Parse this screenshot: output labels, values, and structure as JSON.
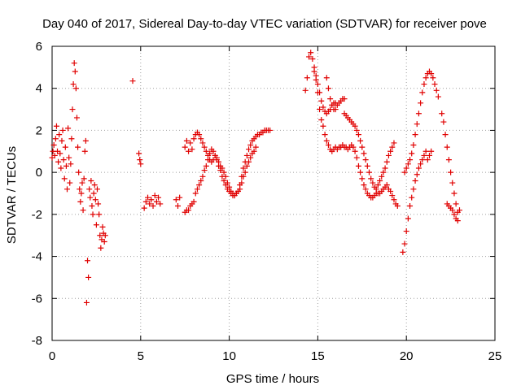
{
  "chart_data": {
    "type": "scatter",
    "title": "Day 040 of 2017, Sidereal Day-to-day VTEC variation (SDTVAR) for receiver pove",
    "xlabel": "GPS time / hours",
    "ylabel": "SDTVAR / TECUs",
    "xlim": [
      0,
      25
    ],
    "ylim": [
      -8,
      6
    ],
    "x_ticks": [
      0,
      5,
      10,
      15,
      20,
      25
    ],
    "y_ticks": [
      -8,
      -6,
      -4,
      -2,
      0,
      2,
      4,
      6
    ],
    "x_tick_labels": [
      "0",
      "5",
      "10",
      "15",
      "20",
      "25"
    ],
    "y_tick_labels": [
      "-8",
      "-6",
      "-4",
      "-2",
      "0",
      "2",
      "4",
      "6"
    ],
    "grid": true,
    "legend": "none",
    "marker": "+",
    "color": "#e00000",
    "points": [
      [
        0.0,
        0.7
      ],
      [
        0.05,
        1.0
      ],
      [
        0.1,
        1.3
      ],
      [
        0.15,
        0.8
      ],
      [
        0.2,
        1.6
      ],
      [
        0.25,
        2.2
      ],
      [
        0.3,
        1.0
      ],
      [
        0.35,
        0.5
      ],
      [
        0.4,
        1.8
      ],
      [
        0.45,
        0.9
      ],
      [
        0.5,
        0.2
      ],
      [
        0.55,
        1.5
      ],
      [
        0.6,
        2.0
      ],
      [
        0.65,
        0.6
      ],
      [
        0.7,
        -0.3
      ],
      [
        0.75,
        1.2
      ],
      [
        0.8,
        0.3
      ],
      [
        0.85,
        -0.8
      ],
      [
        0.9,
        2.1
      ],
      [
        0.95,
        0.7
      ],
      [
        1.0,
        -0.5
      ],
      [
        1.05,
        0.4
      ],
      [
        1.1,
        1.6
      ],
      [
        1.15,
        3.0
      ],
      [
        1.2,
        4.2
      ],
      [
        1.25,
        5.2
      ],
      [
        1.3,
        4.8
      ],
      [
        1.35,
        4.0
      ],
      [
        1.4,
        2.6
      ],
      [
        1.45,
        1.2
      ],
      [
        1.5,
        0.0
      ],
      [
        1.55,
        -0.8
      ],
      [
        1.6,
        -1.4
      ],
      [
        1.65,
        -1.0
      ],
      [
        1.7,
        -0.5
      ],
      [
        1.75,
        -1.8
      ],
      [
        1.8,
        -0.3
      ],
      [
        1.85,
        1.0
      ],
      [
        1.9,
        1.5
      ],
      [
        1.95,
        -6.2
      ],
      [
        2.0,
        -4.2
      ],
      [
        2.05,
        -5.0
      ],
      [
        2.1,
        -0.8
      ],
      [
        2.15,
        -1.2
      ],
      [
        2.2,
        -0.4
      ],
      [
        2.25,
        -1.6
      ],
      [
        2.3,
        -2.0
      ],
      [
        2.35,
        -1.0
      ],
      [
        2.4,
        -0.6
      ],
      [
        2.45,
        -1.3
      ],
      [
        2.5,
        -2.5
      ],
      [
        2.55,
        -0.8
      ],
      [
        2.6,
        -1.5
      ],
      [
        2.65,
        -2.0
      ],
      [
        2.7,
        -3.0
      ],
      [
        2.75,
        -3.6
      ],
      [
        2.8,
        -3.2
      ],
      [
        2.85,
        -2.6
      ],
      [
        2.9,
        -2.9
      ],
      [
        2.95,
        -3.3
      ],
      [
        3.0,
        -3.0
      ],
      [
        4.55,
        4.35
      ],
      [
        4.9,
        0.9
      ],
      [
        4.95,
        0.6
      ],
      [
        5.0,
        0.4
      ],
      [
        5.2,
        -1.7
      ],
      [
        5.3,
        -1.4
      ],
      [
        5.4,
        -1.2
      ],
      [
        5.5,
        -1.5
      ],
      [
        5.6,
        -1.3
      ],
      [
        5.7,
        -1.6
      ],
      [
        5.8,
        -1.1
      ],
      [
        5.9,
        -1.4
      ],
      [
        6.0,
        -1.2
      ],
      [
        6.1,
        -1.5
      ],
      [
        7.0,
        -1.3
      ],
      [
        7.1,
        -1.6
      ],
      [
        7.2,
        -1.2
      ],
      [
        7.5,
        1.2
      ],
      [
        7.6,
        1.5
      ],
      [
        7.7,
        1.0
      ],
      [
        7.8,
        1.4
      ],
      [
        7.9,
        1.1
      ],
      [
        8.0,
        1.6
      ],
      [
        8.1,
        1.8
      ],
      [
        8.2,
        1.9
      ],
      [
        8.3,
        1.8
      ],
      [
        8.4,
        1.6
      ],
      [
        8.5,
        1.4
      ],
      [
        8.6,
        1.2
      ],
      [
        8.7,
        1.0
      ],
      [
        8.8,
        0.8
      ],
      [
        8.9,
        0.6
      ],
      [
        9.0,
        0.5
      ],
      [
        9.1,
        0.6
      ],
      [
        9.2,
        0.8
      ],
      [
        9.3,
        0.7
      ],
      [
        9.4,
        0.5
      ],
      [
        9.5,
        0.3
      ],
      [
        9.6,
        0.2
      ],
      [
        9.7,
        0.0
      ],
      [
        9.8,
        -0.2
      ],
      [
        9.9,
        -0.5
      ],
      [
        10.0,
        -0.7
      ],
      [
        10.1,
        -0.9
      ],
      [
        10.2,
        -1.0
      ],
      [
        10.3,
        -1.1
      ],
      [
        10.4,
        -1.0
      ],
      [
        10.5,
        -0.9
      ],
      [
        10.6,
        -0.6
      ],
      [
        10.7,
        -0.2
      ],
      [
        10.8,
        0.2
      ],
      [
        10.9,
        0.5
      ],
      [
        11.0,
        0.8
      ],
      [
        11.1,
        1.1
      ],
      [
        11.2,
        1.3
      ],
      [
        11.3,
        1.5
      ],
      [
        11.4,
        1.6
      ],
      [
        11.5,
        1.7
      ],
      [
        11.6,
        1.8
      ],
      [
        11.7,
        1.8
      ],
      [
        11.8,
        1.9
      ],
      [
        11.9,
        1.9
      ],
      [
        12.0,
        2.0
      ],
      [
        12.1,
        2.0
      ],
      [
        12.2,
        2.0
      ],
      [
        12.3,
        2.0
      ],
      [
        7.5,
        -1.9
      ],
      [
        7.6,
        -1.8
      ],
      [
        7.7,
        -1.8
      ],
      [
        7.8,
        -1.6
      ],
      [
        7.9,
        -1.5
      ],
      [
        8.0,
        -1.4
      ],
      [
        8.1,
        -1.0
      ],
      [
        8.2,
        -0.8
      ],
      [
        8.3,
        -0.6
      ],
      [
        8.4,
        -0.4
      ],
      [
        8.5,
        -0.2
      ],
      [
        8.6,
        0.1
      ],
      [
        8.7,
        0.3
      ],
      [
        8.8,
        0.6
      ],
      [
        8.9,
        0.9
      ],
      [
        9.0,
        1.1
      ],
      [
        9.1,
        1.0
      ],
      [
        9.2,
        0.8
      ],
      [
        9.3,
        0.6
      ],
      [
        9.4,
        0.3
      ],
      [
        9.5,
        0.1
      ],
      [
        9.6,
        -0.2
      ],
      [
        9.7,
        -0.4
      ],
      [
        9.8,
        -0.6
      ],
      [
        9.9,
        -0.8
      ],
      [
        10.0,
        -0.9
      ],
      [
        10.1,
        -1.0
      ],
      [
        10.2,
        -1.1
      ],
      [
        10.3,
        -1.1
      ],
      [
        10.4,
        -1.0
      ],
      [
        10.5,
        -0.9
      ],
      [
        10.6,
        -0.8
      ],
      [
        10.7,
        -0.5
      ],
      [
        10.8,
        -0.2
      ],
      [
        10.9,
        0.0
      ],
      [
        11.0,
        0.3
      ],
      [
        11.1,
        0.5
      ],
      [
        11.2,
        0.7
      ],
      [
        11.3,
        0.9
      ],
      [
        11.4,
        1.0
      ],
      [
        11.5,
        1.2
      ],
      [
        14.3,
        3.9
      ],
      [
        14.4,
        4.5
      ],
      [
        14.5,
        5.5
      ],
      [
        14.6,
        5.7
      ],
      [
        14.7,
        5.4
      ],
      [
        14.8,
        5.0
      ],
      [
        14.9,
        4.6
      ],
      [
        15.0,
        4.2
      ],
      [
        15.1,
        3.8
      ],
      [
        15.2,
        3.4
      ],
      [
        15.3,
        3.1
      ],
      [
        15.4,
        2.9
      ],
      [
        15.5,
        2.8
      ],
      [
        15.6,
        2.9
      ],
      [
        15.7,
        3.0
      ],
      [
        15.8,
        3.2
      ],
      [
        15.9,
        3.3
      ],
      [
        16.0,
        3.3
      ],
      [
        16.1,
        3.2
      ],
      [
        16.2,
        3.3
      ],
      [
        16.3,
        3.4
      ],
      [
        16.4,
        3.5
      ],
      [
        16.5,
        3.5
      ],
      [
        14.8,
        4.8
      ],
      [
        14.9,
        4.4
      ],
      [
        15.0,
        3.8
      ],
      [
        15.1,
        3.0
      ],
      [
        15.2,
        2.5
      ],
      [
        15.3,
        2.2
      ],
      [
        15.4,
        1.8
      ],
      [
        15.5,
        1.5
      ],
      [
        15.6,
        1.3
      ],
      [
        15.7,
        1.1
      ],
      [
        15.8,
        1.0
      ],
      [
        15.9,
        1.1
      ],
      [
        16.0,
        1.2
      ],
      [
        16.1,
        1.1
      ],
      [
        16.2,
        1.2
      ],
      [
        16.3,
        1.2
      ],
      [
        16.4,
        1.3
      ],
      [
        16.5,
        1.2
      ],
      [
        16.6,
        1.2
      ],
      [
        16.7,
        1.1
      ],
      [
        16.8,
        1.2
      ],
      [
        16.9,
        1.3
      ],
      [
        17.0,
        1.2
      ],
      [
        17.1,
        1.0
      ],
      [
        17.2,
        0.7
      ],
      [
        17.3,
        0.3
      ],
      [
        17.4,
        0.0
      ],
      [
        17.5,
        -0.3
      ],
      [
        17.6,
        -0.6
      ],
      [
        17.7,
        -0.8
      ],
      [
        17.8,
        -1.0
      ],
      [
        17.9,
        -1.1
      ],
      [
        18.0,
        -1.2
      ],
      [
        18.1,
        -1.2
      ],
      [
        18.2,
        -1.1
      ],
      [
        18.3,
        -1.0
      ],
      [
        18.4,
        -1.0
      ],
      [
        18.5,
        -1.0
      ],
      [
        18.6,
        -0.9
      ],
      [
        18.7,
        -0.8
      ],
      [
        18.8,
        -0.7
      ],
      [
        18.9,
        -0.6
      ],
      [
        19.0,
        -0.8
      ],
      [
        19.1,
        -0.9
      ],
      [
        19.2,
        -1.1
      ],
      [
        19.3,
        -1.3
      ],
      [
        19.4,
        -1.5
      ],
      [
        19.5,
        -1.6
      ],
      [
        16.5,
        2.8
      ],
      [
        16.6,
        2.7
      ],
      [
        16.7,
        2.6
      ],
      [
        16.8,
        2.5
      ],
      [
        16.9,
        2.4
      ],
      [
        17.0,
        2.3
      ],
      [
        17.1,
        2.2
      ],
      [
        17.2,
        2.0
      ],
      [
        17.3,
        1.8
      ],
      [
        17.4,
        1.5
      ],
      [
        17.5,
        1.2
      ],
      [
        17.6,
        0.9
      ],
      [
        17.7,
        0.6
      ],
      [
        17.8,
        0.3
      ],
      [
        17.9,
        0.0
      ],
      [
        18.0,
        -0.3
      ],
      [
        18.1,
        -0.5
      ],
      [
        18.2,
        -0.7
      ],
      [
        18.3,
        -0.8
      ],
      [
        18.4,
        -0.6
      ],
      [
        18.5,
        -0.4
      ],
      [
        18.6,
        -0.2
      ],
      [
        18.7,
        0.0
      ],
      [
        18.8,
        0.2
      ],
      [
        18.9,
        0.5
      ],
      [
        19.0,
        0.8
      ],
      [
        19.1,
        1.0
      ],
      [
        19.2,
        1.2
      ],
      [
        19.3,
        1.4
      ],
      [
        15.5,
        4.5
      ],
      [
        15.6,
        4.0
      ],
      [
        15.7,
        3.5
      ],
      [
        15.8,
        3.2
      ],
      [
        15.9,
        3.0
      ],
      [
        16.0,
        3.0
      ],
      [
        19.8,
        -3.8
      ],
      [
        19.9,
        -3.4
      ],
      [
        20.0,
        -2.8
      ],
      [
        20.1,
        -2.2
      ],
      [
        20.2,
        -1.6
      ],
      [
        20.3,
        -1.2
      ],
      [
        20.4,
        -0.8
      ],
      [
        20.5,
        -0.4
      ],
      [
        20.6,
        -0.1
      ],
      [
        20.7,
        0.2
      ],
      [
        20.8,
        0.4
      ],
      [
        20.9,
        0.6
      ],
      [
        21.0,
        0.8
      ],
      [
        21.1,
        1.0
      ],
      [
        19.9,
        0.0
      ],
      [
        20.0,
        0.2
      ],
      [
        20.1,
        0.4
      ],
      [
        20.2,
        0.6
      ],
      [
        20.3,
        0.9
      ],
      [
        20.4,
        1.3
      ],
      [
        20.5,
        1.8
      ],
      [
        20.6,
        2.3
      ],
      [
        20.7,
        2.8
      ],
      [
        20.8,
        3.3
      ],
      [
        20.9,
        3.8
      ],
      [
        21.0,
        4.2
      ],
      [
        21.1,
        4.5
      ],
      [
        21.2,
        4.7
      ],
      [
        21.3,
        4.8
      ],
      [
        21.4,
        4.7
      ],
      [
        21.5,
        4.5
      ],
      [
        21.6,
        4.2
      ],
      [
        21.7,
        3.9
      ],
      [
        21.8,
        3.6
      ],
      [
        22.0,
        2.8
      ],
      [
        22.1,
        2.4
      ],
      [
        22.2,
        1.8
      ],
      [
        22.3,
        1.2
      ],
      [
        22.4,
        0.6
      ],
      [
        22.5,
        0.0
      ],
      [
        22.6,
        -0.5
      ],
      [
        22.7,
        -1.0
      ],
      [
        22.8,
        -1.5
      ],
      [
        22.9,
        -1.9
      ],
      [
        22.3,
        -1.5
      ],
      [
        22.4,
        -1.6
      ],
      [
        22.5,
        -1.7
      ],
      [
        22.6,
        -1.8
      ],
      [
        22.7,
        -2.0
      ],
      [
        22.8,
        -2.2
      ],
      [
        22.9,
        -2.3
      ],
      [
        23.0,
        -1.8
      ],
      [
        21.4,
        1.0
      ],
      [
        21.3,
        0.8
      ],
      [
        21.2,
        0.6
      ]
    ]
  }
}
